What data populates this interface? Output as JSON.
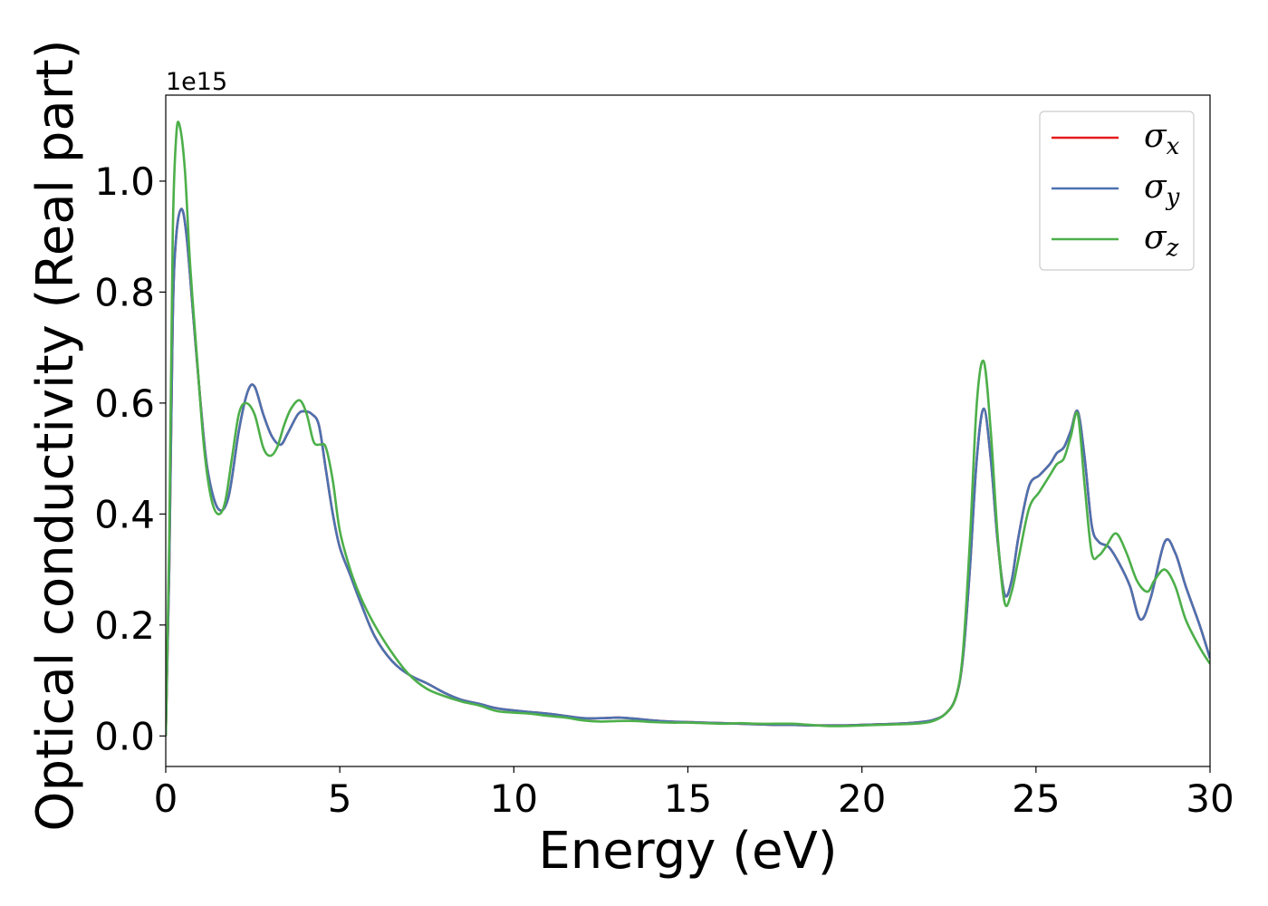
{
  "chart_data": {
    "type": "line",
    "xlabel": "Energy (eV)",
    "ylabel": "Optical conductivity (Real part)",
    "offset_text": "1e15",
    "xlim": [
      0,
      30
    ],
    "ylim": [
      -0.055,
      1.155
    ],
    "xticks": [
      0,
      5,
      10,
      15,
      20,
      25,
      30
    ],
    "xtick_labels": [
      "0",
      "5",
      "10",
      "15",
      "20",
      "25",
      "30"
    ],
    "yticks": [
      0.0,
      0.2,
      0.4,
      0.6,
      0.8,
      1.0
    ],
    "ytick_labels": [
      "0.0",
      "0.2",
      "0.4",
      "0.6",
      "0.8",
      "1.0"
    ],
    "grid": false,
    "legend_position": "top-right",
    "y_unit_multiplier": 1000000000000000.0,
    "series": [
      {
        "name": "σx",
        "legend_symbol": "σ",
        "legend_sub": "x",
        "color": "#e41a1c",
        "x": [
          0,
          0.1,
          0.2,
          0.3,
          0.45,
          0.6,
          0.8,
          1.0,
          1.2,
          1.5,
          1.8,
          2.1,
          2.35,
          2.55,
          2.8,
          3.05,
          3.3,
          3.5,
          3.8,
          4.0,
          4.2,
          4.4,
          4.6,
          4.8,
          5.0,
          5.3,
          5.6,
          6.0,
          6.5,
          7.0,
          7.5,
          8.0,
          8.5,
          9.0,
          9.5,
          10.0,
          10.5,
          11.0,
          11.5,
          12.0,
          12.5,
          13.0,
          13.5,
          14.0,
          14.5,
          15.0,
          15.5,
          16.0,
          16.5,
          17.0,
          17.5,
          18.0,
          18.5,
          19.0,
          19.5,
          20.0,
          20.5,
          21.0,
          21.5,
          22.0,
          22.4,
          22.7,
          22.9,
          23.1,
          23.3,
          23.5,
          23.7,
          23.9,
          24.1,
          24.3,
          24.5,
          24.8,
          25.1,
          25.4,
          25.6,
          25.8,
          26.0,
          26.2,
          26.4,
          26.6,
          26.8,
          27.1,
          27.4,
          27.7,
          28.0,
          28.3,
          28.7,
          29.0,
          29.3,
          29.7,
          30.0
        ],
        "y": [
          0.0,
          0.3,
          0.75,
          0.9,
          0.95,
          0.9,
          0.75,
          0.6,
          0.48,
          0.41,
          0.43,
          0.55,
          0.62,
          0.63,
          0.58,
          0.54,
          0.525,
          0.545,
          0.58,
          0.585,
          0.58,
          0.56,
          0.48,
          0.4,
          0.34,
          0.29,
          0.24,
          0.18,
          0.135,
          0.11,
          0.095,
          0.078,
          0.065,
          0.058,
          0.05,
          0.046,
          0.043,
          0.04,
          0.036,
          0.032,
          0.032,
          0.033,
          0.031,
          0.028,
          0.026,
          0.025,
          0.024,
          0.023,
          0.022,
          0.021,
          0.02,
          0.02,
          0.019,
          0.019,
          0.019,
          0.02,
          0.021,
          0.022,
          0.024,
          0.028,
          0.04,
          0.07,
          0.14,
          0.3,
          0.5,
          0.59,
          0.5,
          0.35,
          0.255,
          0.28,
          0.36,
          0.45,
          0.47,
          0.49,
          0.51,
          0.52,
          0.55,
          0.585,
          0.5,
          0.38,
          0.35,
          0.34,
          0.31,
          0.27,
          0.21,
          0.25,
          0.35,
          0.33,
          0.27,
          0.2,
          0.14
        ]
      },
      {
        "name": "σy",
        "legend_symbol": "σ",
        "legend_sub": "y",
        "color": "#4c72b0",
        "x": [
          0,
          0.1,
          0.2,
          0.3,
          0.45,
          0.6,
          0.8,
          1.0,
          1.2,
          1.5,
          1.8,
          2.1,
          2.35,
          2.55,
          2.8,
          3.05,
          3.3,
          3.5,
          3.8,
          4.0,
          4.2,
          4.4,
          4.6,
          4.8,
          5.0,
          5.3,
          5.6,
          6.0,
          6.5,
          7.0,
          7.5,
          8.0,
          8.5,
          9.0,
          9.5,
          10.0,
          10.5,
          11.0,
          11.5,
          12.0,
          12.5,
          13.0,
          13.5,
          14.0,
          14.5,
          15.0,
          15.5,
          16.0,
          16.5,
          17.0,
          17.5,
          18.0,
          18.5,
          19.0,
          19.5,
          20.0,
          20.5,
          21.0,
          21.5,
          22.0,
          22.4,
          22.7,
          22.9,
          23.1,
          23.3,
          23.5,
          23.7,
          23.9,
          24.1,
          24.3,
          24.5,
          24.8,
          25.1,
          25.4,
          25.6,
          25.8,
          26.0,
          26.2,
          26.4,
          26.6,
          26.8,
          27.1,
          27.4,
          27.7,
          28.0,
          28.3,
          28.7,
          29.0,
          29.3,
          29.7,
          30.0
        ],
        "y": [
          0.0,
          0.3,
          0.75,
          0.9,
          0.95,
          0.9,
          0.75,
          0.6,
          0.48,
          0.41,
          0.43,
          0.55,
          0.62,
          0.63,
          0.58,
          0.54,
          0.525,
          0.545,
          0.58,
          0.585,
          0.58,
          0.56,
          0.48,
          0.4,
          0.34,
          0.29,
          0.24,
          0.18,
          0.135,
          0.11,
          0.095,
          0.078,
          0.065,
          0.058,
          0.05,
          0.046,
          0.043,
          0.04,
          0.036,
          0.032,
          0.032,
          0.033,
          0.031,
          0.028,
          0.026,
          0.025,
          0.024,
          0.023,
          0.022,
          0.021,
          0.02,
          0.02,
          0.019,
          0.019,
          0.019,
          0.02,
          0.021,
          0.022,
          0.024,
          0.028,
          0.04,
          0.07,
          0.14,
          0.3,
          0.5,
          0.59,
          0.5,
          0.35,
          0.255,
          0.28,
          0.36,
          0.45,
          0.47,
          0.49,
          0.51,
          0.52,
          0.55,
          0.585,
          0.5,
          0.38,
          0.35,
          0.34,
          0.31,
          0.27,
          0.21,
          0.25,
          0.35,
          0.33,
          0.27,
          0.2,
          0.14
        ]
      },
      {
        "name": "σz",
        "legend_symbol": "σ",
        "legend_sub": "z",
        "color": "#4daf4a",
        "x": [
          0,
          0.1,
          0.2,
          0.3,
          0.4,
          0.55,
          0.7,
          0.9,
          1.1,
          1.3,
          1.5,
          1.7,
          1.9,
          2.1,
          2.3,
          2.55,
          2.8,
          3.0,
          3.2,
          3.4,
          3.6,
          3.85,
          4.05,
          4.25,
          4.45,
          4.6,
          4.8,
          5.0,
          5.3,
          5.6,
          6.0,
          6.5,
          7.0,
          7.5,
          8.0,
          8.5,
          9.0,
          9.5,
          10.0,
          10.5,
          11.0,
          11.5,
          12.0,
          12.5,
          13.0,
          13.5,
          14.0,
          14.5,
          15.0,
          15.5,
          16.0,
          16.5,
          17.0,
          17.5,
          18.0,
          18.5,
          19.0,
          19.5,
          20.0,
          20.5,
          21.0,
          21.5,
          22.0,
          22.4,
          22.7,
          22.9,
          23.1,
          23.3,
          23.5,
          23.7,
          23.9,
          24.1,
          24.3,
          24.5,
          24.8,
          25.1,
          25.4,
          25.6,
          25.8,
          26.0,
          26.2,
          26.4,
          26.6,
          26.8,
          27.0,
          27.3,
          27.6,
          27.9,
          28.2,
          28.4,
          28.7,
          29.0,
          29.3,
          29.7,
          30.0
        ],
        "y": [
          0.0,
          0.35,
          0.9,
          1.08,
          1.1,
          1.02,
          0.85,
          0.68,
          0.52,
          0.43,
          0.4,
          0.42,
          0.5,
          0.58,
          0.6,
          0.58,
          0.52,
          0.505,
          0.52,
          0.56,
          0.59,
          0.605,
          0.58,
          0.53,
          0.525,
          0.52,
          0.46,
          0.37,
          0.3,
          0.25,
          0.2,
          0.15,
          0.11,
          0.085,
          0.072,
          0.062,
          0.055,
          0.045,
          0.042,
          0.04,
          0.036,
          0.033,
          0.028,
          0.026,
          0.027,
          0.027,
          0.025,
          0.024,
          0.024,
          0.023,
          0.022,
          0.023,
          0.022,
          0.022,
          0.022,
          0.02,
          0.018,
          0.018,
          0.019,
          0.02,
          0.021,
          0.022,
          0.026,
          0.04,
          0.07,
          0.15,
          0.35,
          0.6,
          0.675,
          0.55,
          0.36,
          0.24,
          0.26,
          0.32,
          0.41,
          0.44,
          0.47,
          0.49,
          0.5,
          0.54,
          0.58,
          0.45,
          0.33,
          0.325,
          0.34,
          0.365,
          0.33,
          0.28,
          0.26,
          0.28,
          0.3,
          0.27,
          0.21,
          0.16,
          0.13
        ]
      }
    ]
  }
}
